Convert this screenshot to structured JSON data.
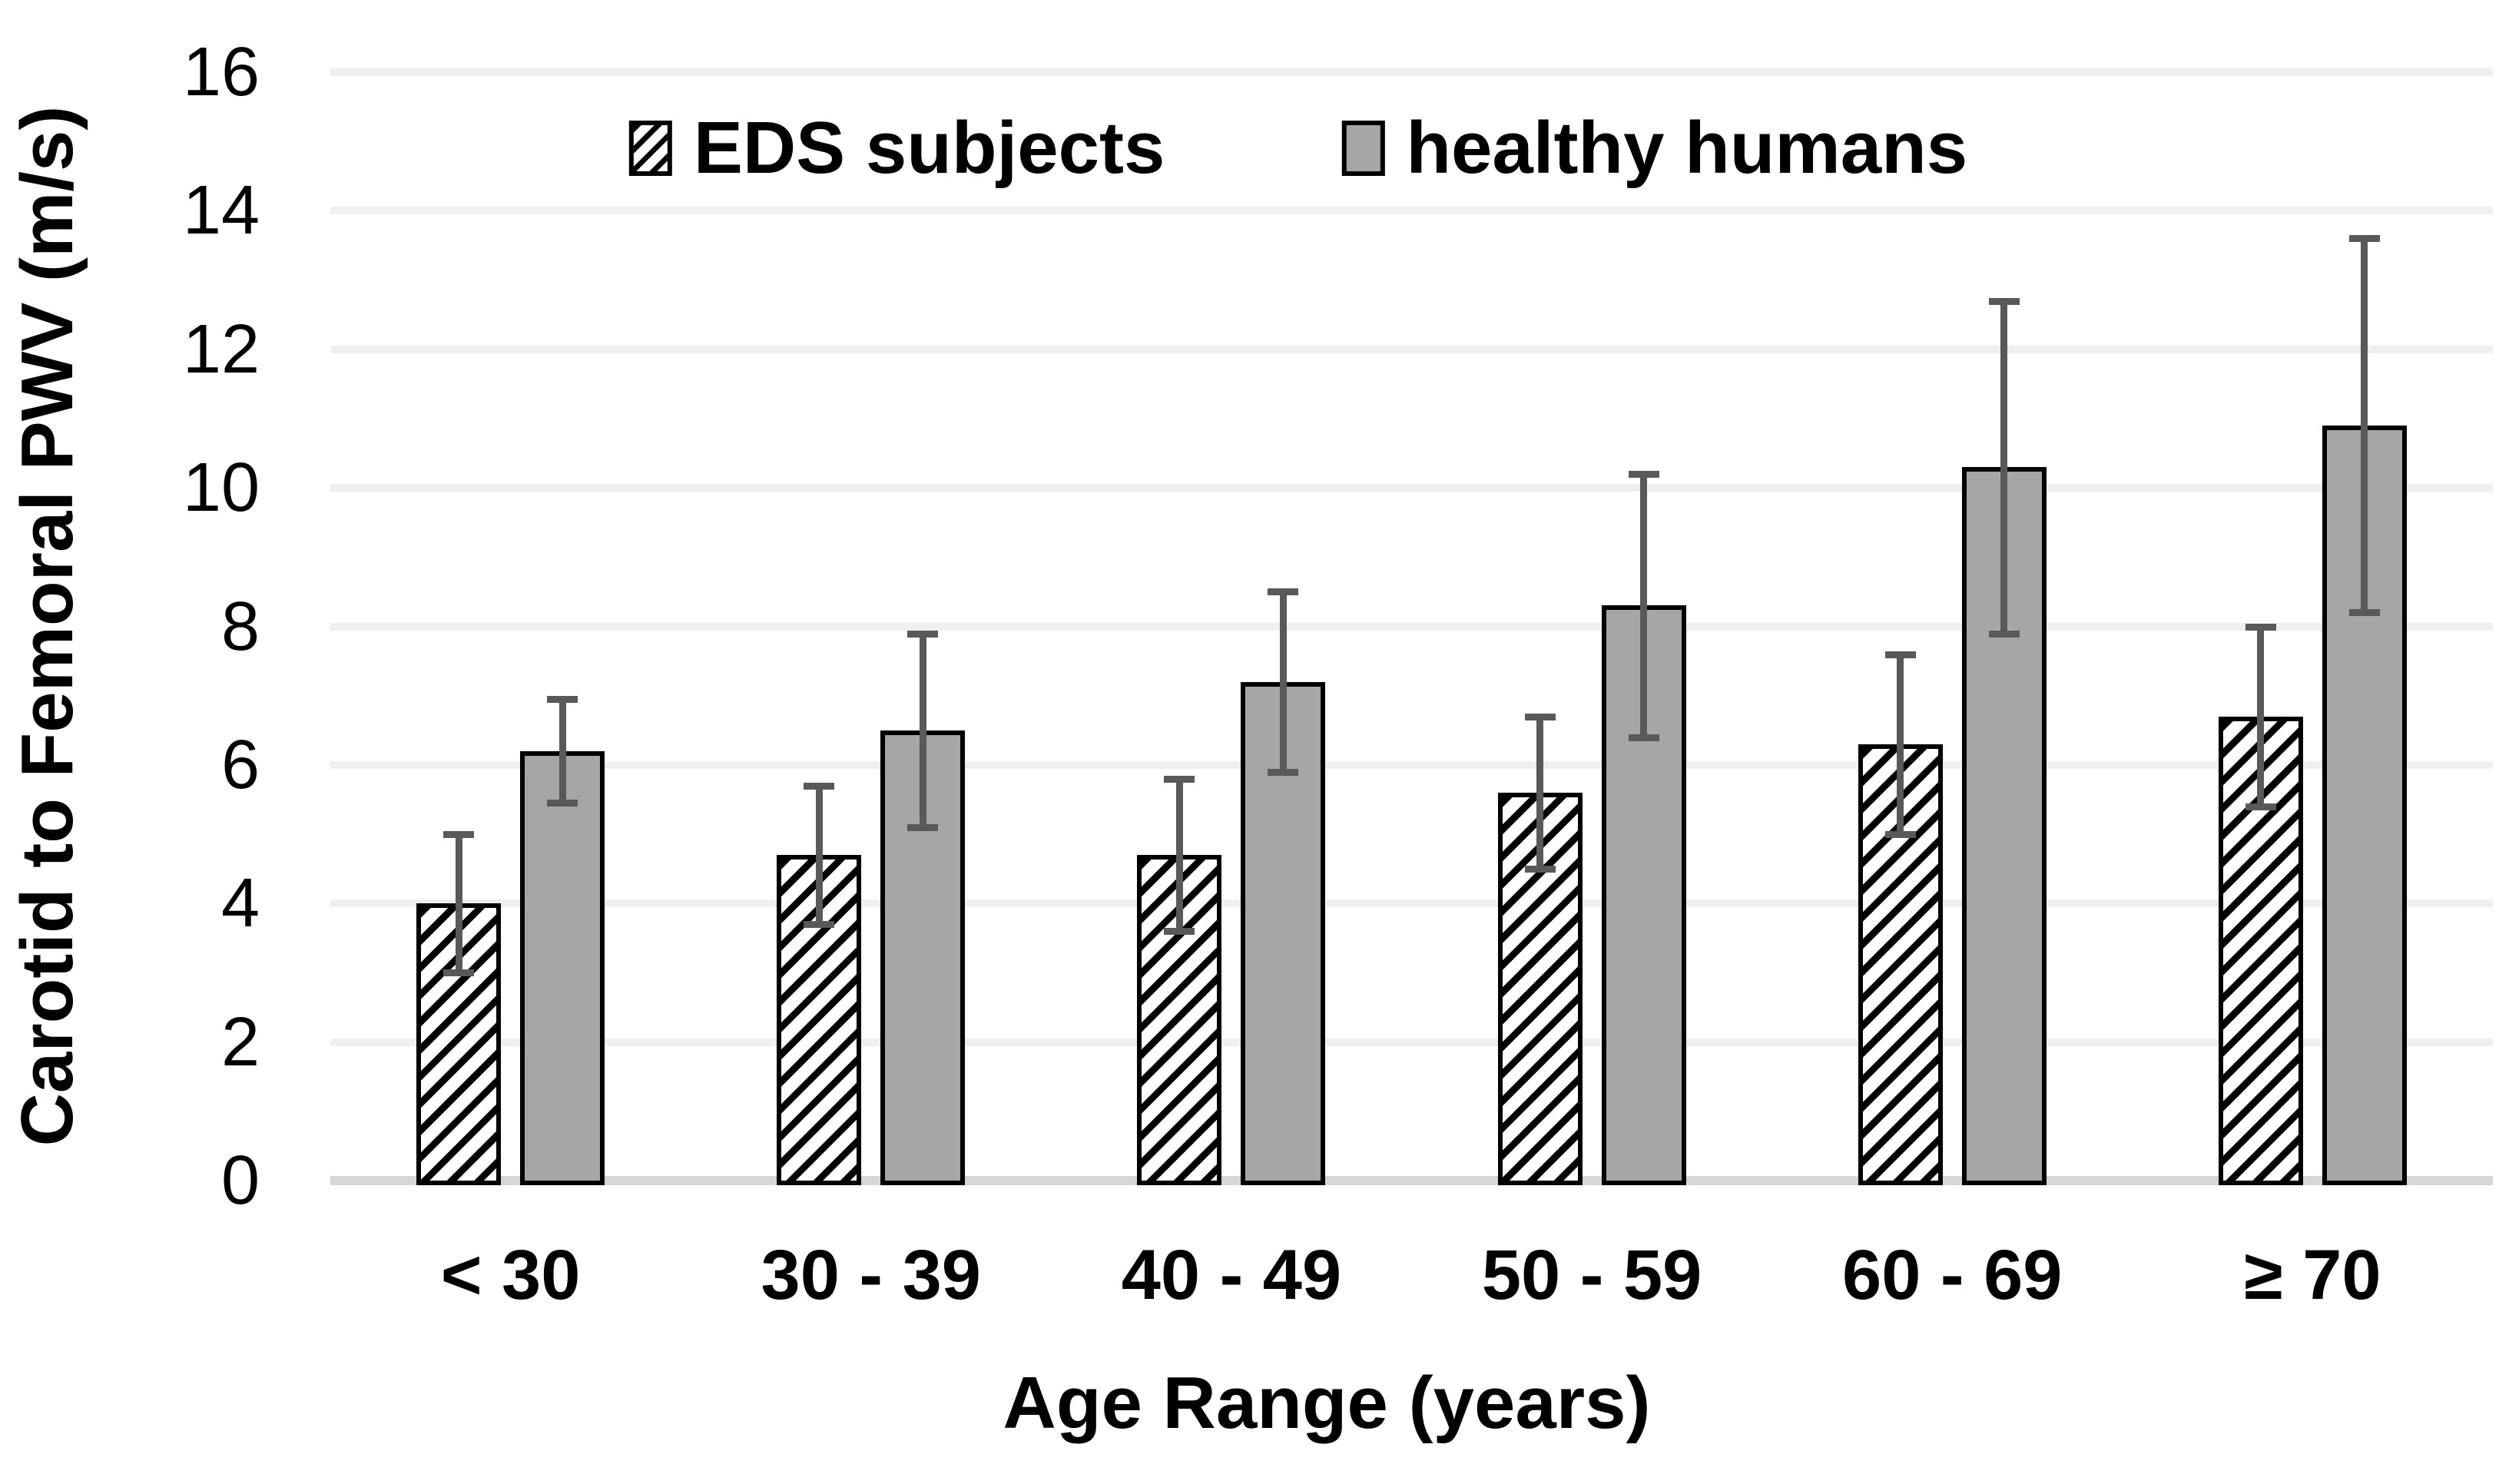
{
  "chart_data": {
    "type": "bar",
    "title": "",
    "xlabel": "Age Range (years)",
    "ylabel": "Carotid to Femoral PWV (m/s)",
    "categories": [
      "< 30",
      "30 - 39",
      "40 - 49",
      "50 - 59",
      "60 - 69",
      "≥ 70"
    ],
    "series": [
      {
        "name": "EDS subjects",
        "style": "hatched",
        "values": [
          4.0,
          4.7,
          4.7,
          5.6,
          6.3,
          6.7
        ],
        "errors": [
          1.0,
          1.0,
          1.1,
          1.1,
          1.3,
          1.3
        ]
      },
      {
        "name": "healthy humans",
        "style": "solid",
        "values": [
          6.2,
          6.5,
          7.2,
          8.3,
          10.3,
          10.9
        ],
        "errors": [
          0.75,
          1.4,
          1.3,
          1.9,
          2.4,
          2.7
        ]
      }
    ],
    "ylim": [
      0,
      16
    ],
    "yticks": [
      0,
      2,
      4,
      6,
      8,
      10,
      12,
      14,
      16
    ],
    "grid": "horizontal",
    "legend_position": "top-center",
    "error_bars": true,
    "colors": {
      "bar_fill": "#a6a6a6",
      "bar_border": "#000000",
      "hatch_foreground": "#000000",
      "hatch_background": "#ffffff",
      "error_bar": "#595959",
      "gridline": "#efefef",
      "axis_line": "#d6d6d6",
      "text": "#000000"
    }
  }
}
